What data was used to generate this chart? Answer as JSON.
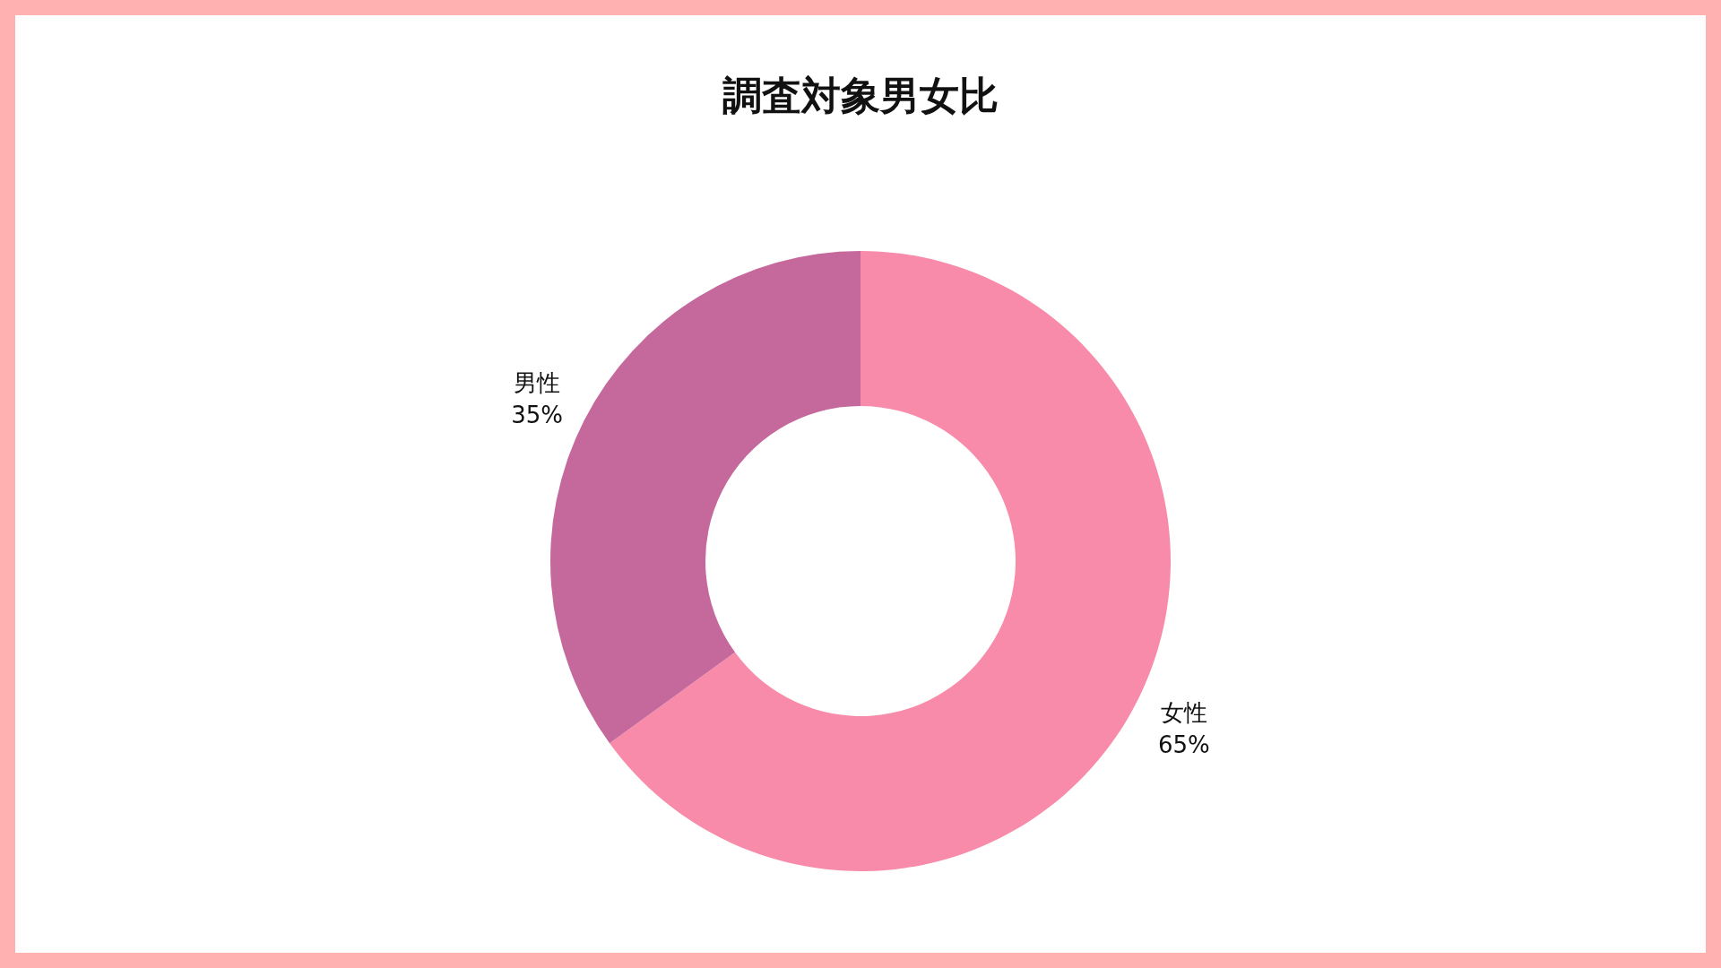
{
  "chart_data": {
    "type": "donut",
    "title": "調査対象男女比",
    "categories": [
      "女性",
      "男性"
    ],
    "values": [
      65,
      35
    ],
    "value_labels": [
      "65%",
      "35%"
    ],
    "colors": [
      "#f78ba9",
      "#c5689c"
    ]
  }
}
